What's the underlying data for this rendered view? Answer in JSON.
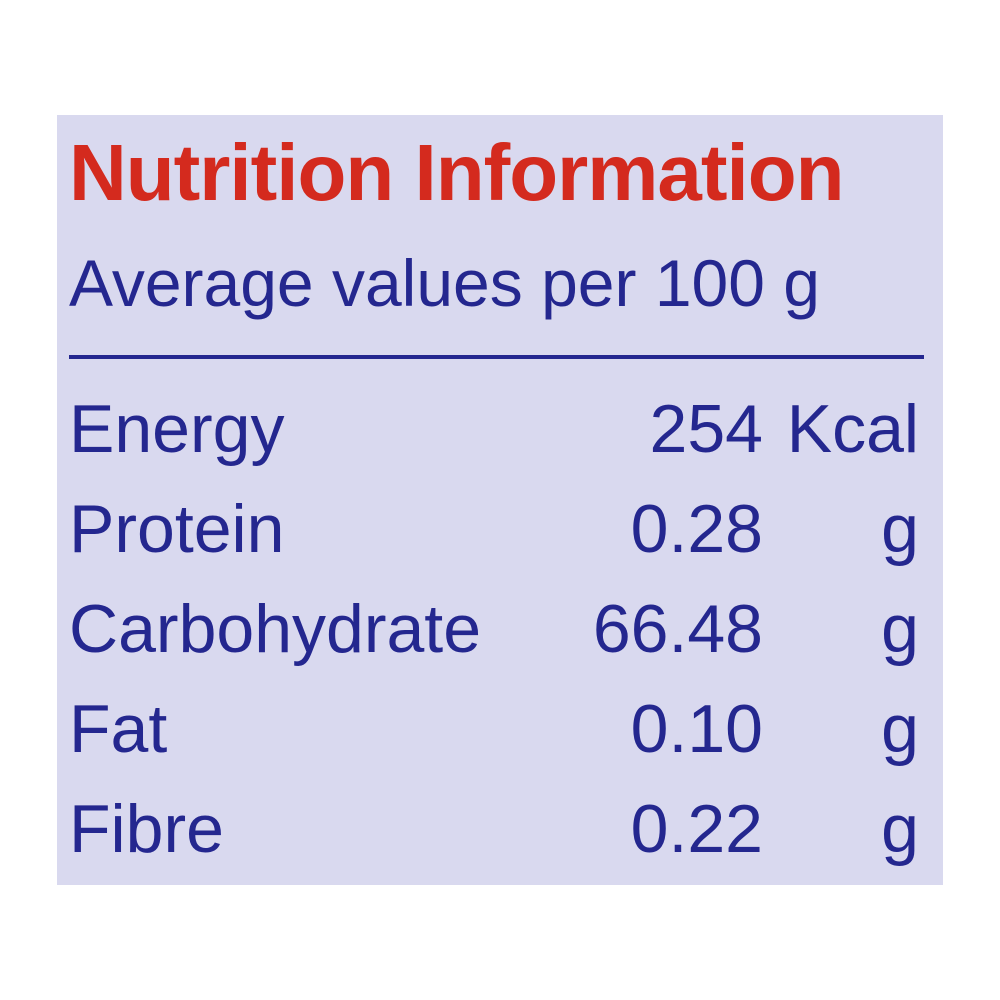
{
  "header": {
    "title": "Nutrition Information",
    "subtitle": "Average values per 100 g"
  },
  "table": {
    "rows": [
      [
        "Energy",
        "254",
        "Kcal"
      ],
      [
        "Protein",
        "0.28",
        "g"
      ],
      [
        "Carbohydrate",
        "66.48",
        "g"
      ],
      [
        "Fat",
        "0.10",
        "g"
      ],
      [
        "Fibre",
        "0.22",
        "g"
      ]
    ]
  }
}
